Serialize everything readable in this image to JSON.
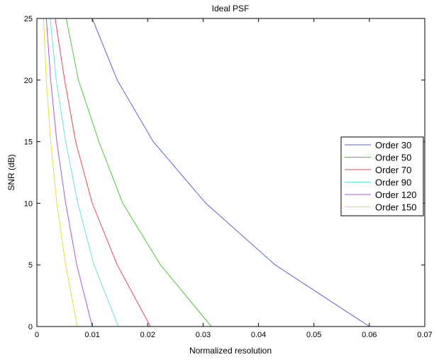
{
  "chart_data": {
    "type": "line",
    "title": "Ideal PSF",
    "xlabel": "Normalized resolution",
    "ylabel": "SNR (dB)",
    "xlim": [
      0,
      0.07
    ],
    "ylim": [
      0,
      25
    ],
    "xticks": [
      0,
      0.01,
      0.02,
      0.03,
      0.04,
      0.05,
      0.06,
      0.07
    ],
    "xtick_labels": [
      "0",
      "0.01",
      "0.02",
      "0.03",
      "0.04",
      "0.05",
      "0.06",
      "0.07"
    ],
    "yticks": [
      0,
      5,
      10,
      15,
      20,
      25
    ],
    "ytick_labels": [
      "0",
      "5",
      "10",
      "15",
      "20",
      "25"
    ],
    "grid": false,
    "legend_position": "right, middle",
    "y": [
      0,
      5,
      10,
      15,
      20,
      25
    ],
    "series": [
      {
        "name": "Order 30",
        "color": "#5b62d8",
        "x": [
          0.06,
          0.043,
          0.0305,
          0.021,
          0.0145,
          0.01
        ]
      },
      {
        "name": "Order 50",
        "color": "#50c43c",
        "x": [
          0.0315,
          0.0223,
          0.0155,
          0.0112,
          0.0075,
          0.0053
        ]
      },
      {
        "name": "Order 70",
        "color": "#e64a5a",
        "x": [
          0.0205,
          0.0145,
          0.01,
          0.007,
          0.005,
          0.0033
        ]
      },
      {
        "name": "Order 90",
        "color": "#6be0e0",
        "x": [
          0.0147,
          0.0103,
          0.0074,
          0.0052,
          0.0035,
          0.0024
        ]
      },
      {
        "name": "Order 120",
        "color": "#a958d8",
        "x": [
          0.01,
          0.0072,
          0.0052,
          0.0036,
          0.0025,
          0.0017
        ]
      },
      {
        "name": "Order 150",
        "color": "#e0e040",
        "x": [
          0.0073,
          0.0052,
          0.0036,
          0.0025,
          0.0017,
          0.0012
        ]
      }
    ]
  }
}
